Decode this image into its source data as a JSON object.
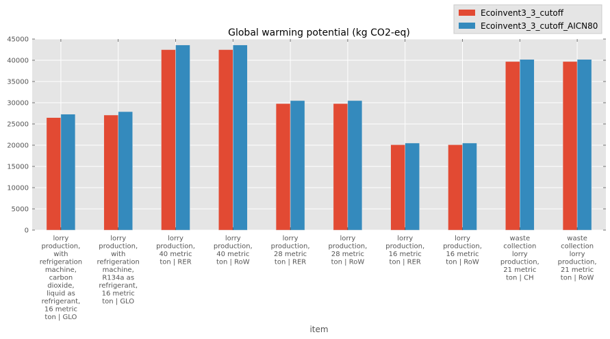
{
  "chart_data": {
    "type": "bar",
    "title": "Global warming potential (kg CO2-eq)",
    "xlabel": "item",
    "ylabel": "",
    "ylim": [
      0,
      45000
    ],
    "yticks": [
      0,
      5000,
      10000,
      15000,
      20000,
      25000,
      30000,
      35000,
      40000,
      45000
    ],
    "grid": true,
    "legend_position": "top-right",
    "categories": [
      [
        "lorry",
        "production,",
        "with",
        "refrigeration",
        "machine,",
        "carbon",
        "dioxide,",
        "liquid as",
        "refrigerant,",
        "16 metric",
        "ton | GLO"
      ],
      [
        "lorry",
        "production,",
        "with",
        "refrigeration",
        "machine,",
        "R134a as",
        "refrigerant,",
        "16 metric",
        "ton | GLO"
      ],
      [
        "lorry",
        "production,",
        "40 metric",
        "ton | RER"
      ],
      [
        "lorry",
        "production,",
        "40 metric",
        "ton | RoW"
      ],
      [
        "lorry",
        "production,",
        "28 metric",
        "ton | RER"
      ],
      [
        "lorry",
        "production,",
        "28 metric",
        "ton | RoW"
      ],
      [
        "lorry",
        "production,",
        "16 metric",
        "ton | RER"
      ],
      [
        "lorry",
        "production,",
        "16 metric",
        "ton | RoW"
      ],
      [
        "waste",
        "collection",
        "lorry",
        "production,",
        "21 metric",
        "ton | CH"
      ],
      [
        "waste",
        "collection",
        "lorry",
        "production,",
        "21 metric",
        "ton | RoW"
      ]
    ],
    "series": [
      {
        "name": "Ecoinvent3_3_cutoff",
        "color": "#e24a33",
        "values": [
          26500,
          27100,
          42500,
          42500,
          29800,
          29800,
          20100,
          20100,
          39700,
          39700
        ]
      },
      {
        "name": "Ecoinvent3_3_cutoff_AICN80",
        "color": "#348abd",
        "values": [
          27300,
          27900,
          43600,
          43600,
          30500,
          30500,
          20500,
          20500,
          40200,
          40200
        ]
      }
    ]
  }
}
